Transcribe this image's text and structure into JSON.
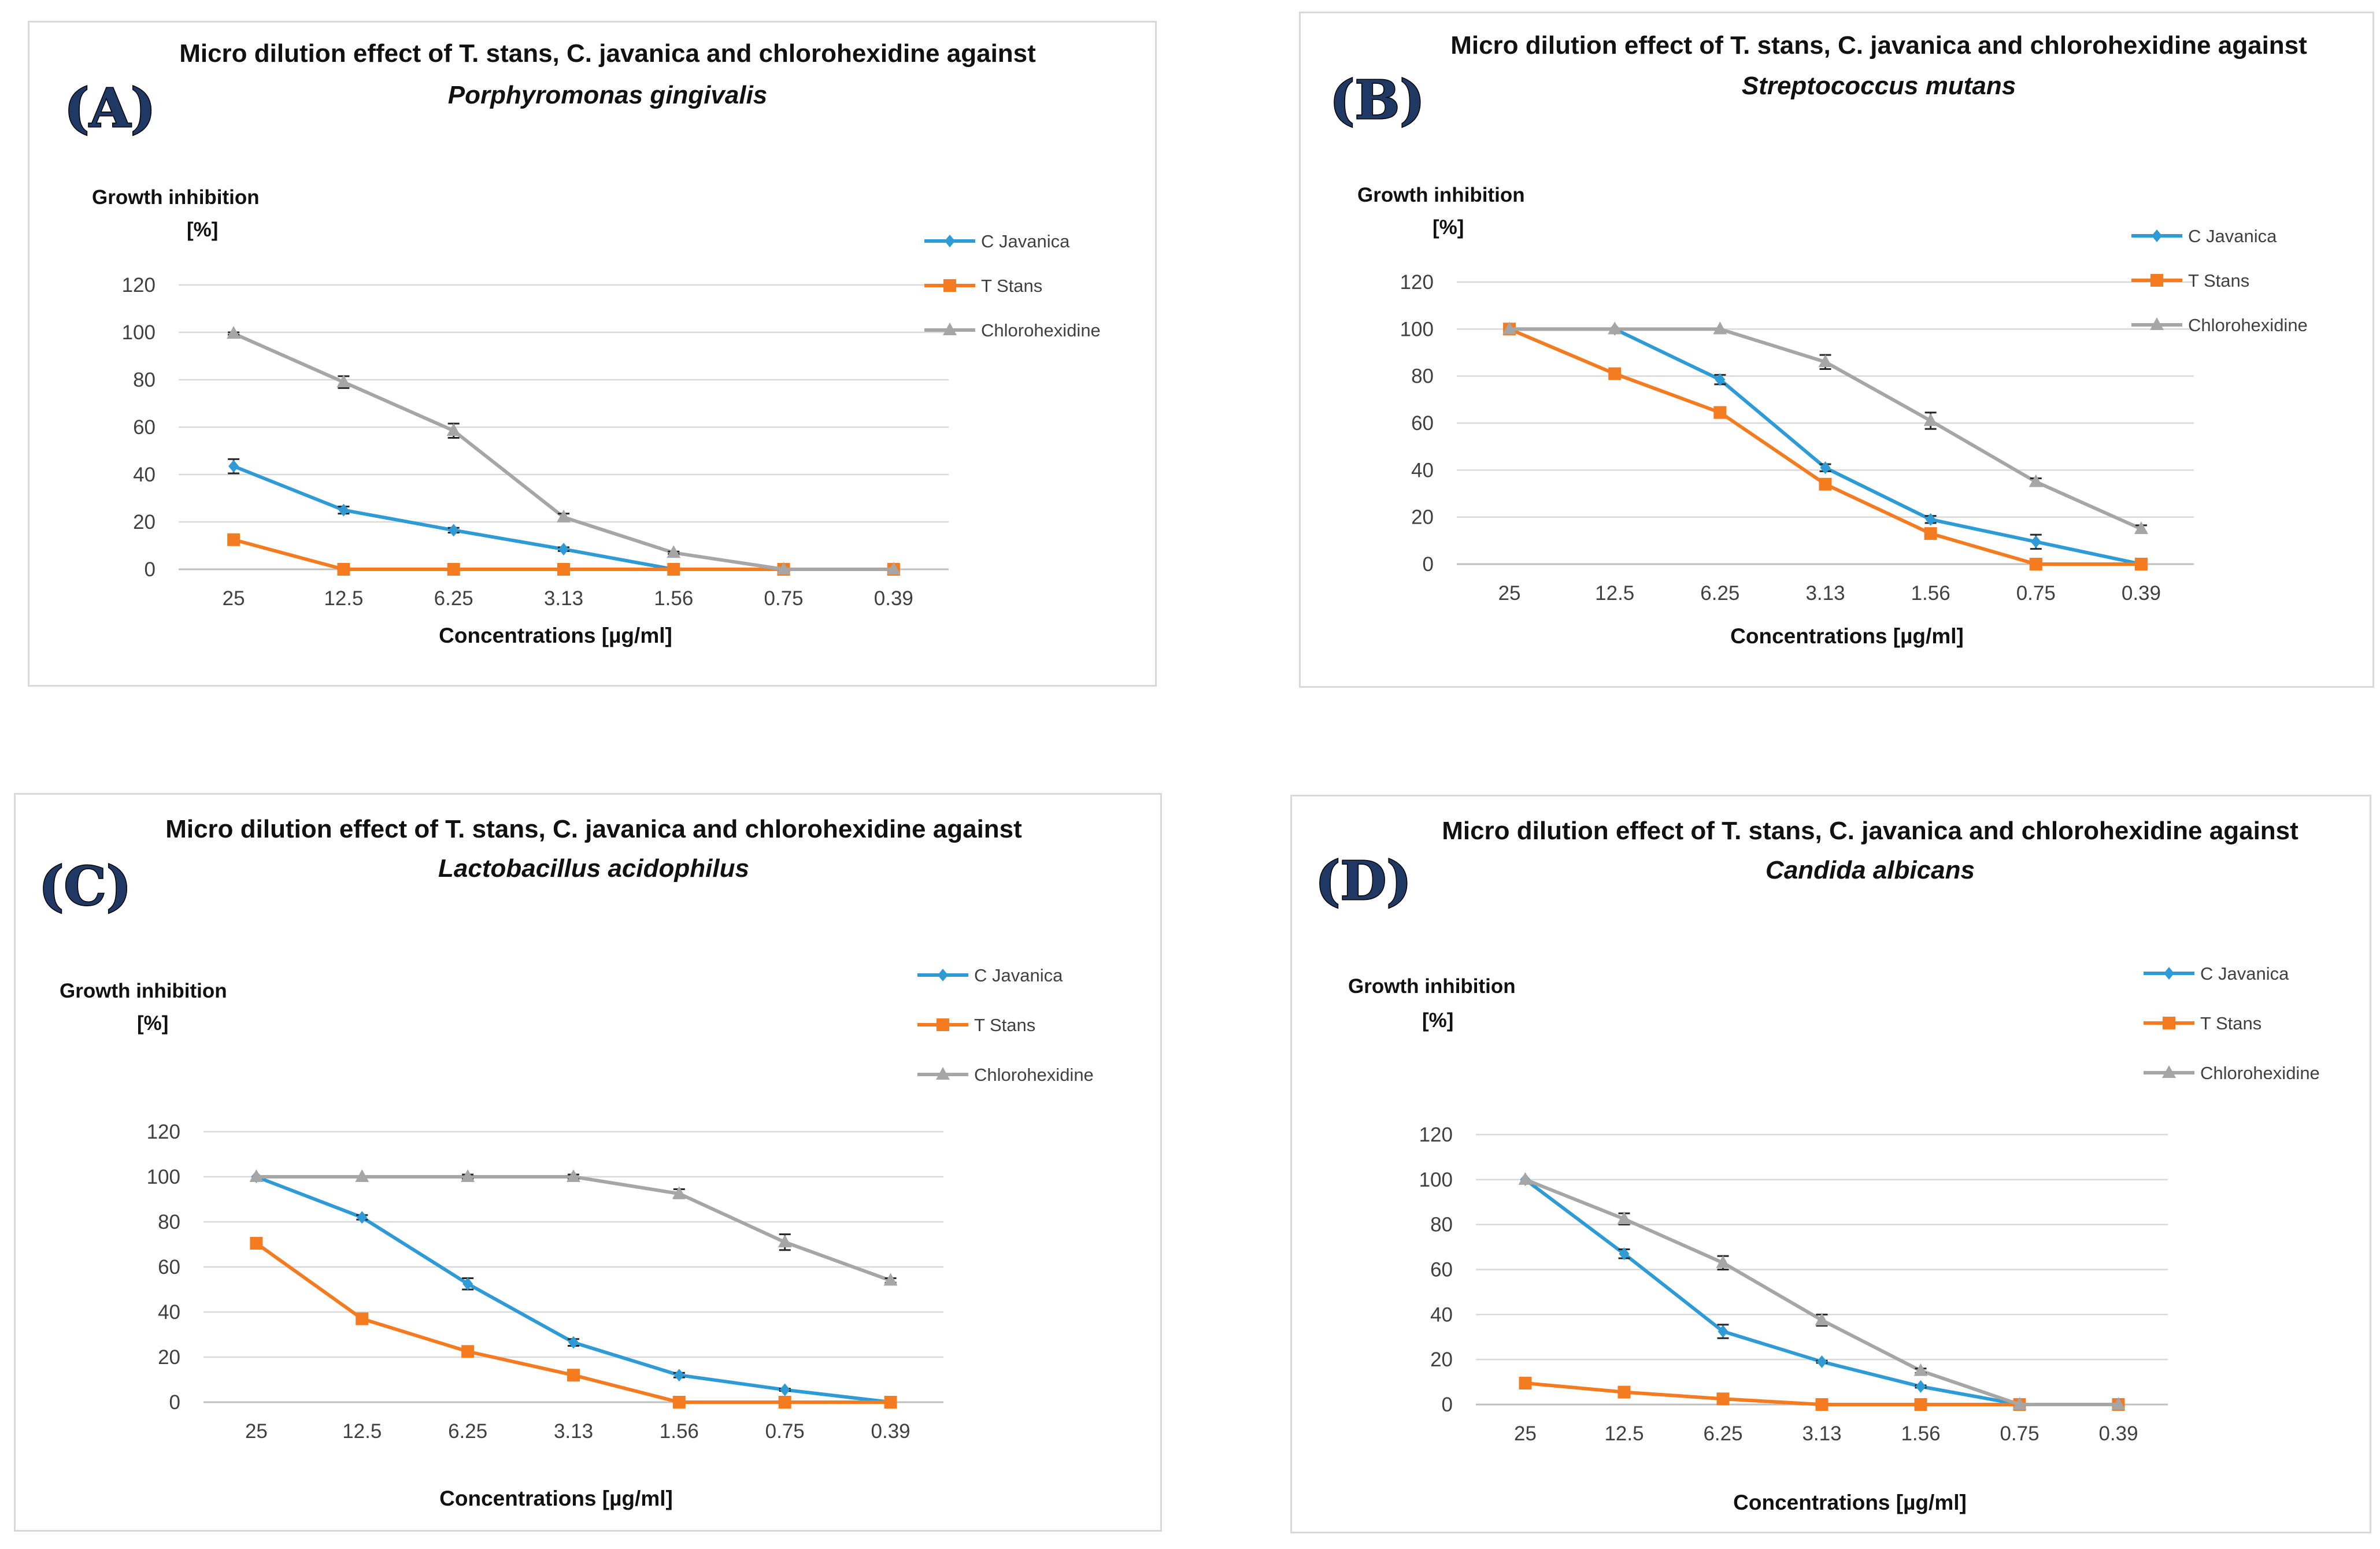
{
  "colors": {
    "c_javanica": "#2e9bd6",
    "t_stans": "#f47b20",
    "chlorohexidine": "#a6a6a6"
  },
  "chart_data": [
    {
      "type": "line",
      "panel_label": "(A)",
      "title": "Micro dilution effect of T. stans, C. javanica and chlorohexidine against",
      "subtitle": "Porphyromonas gingivalis",
      "ylabel": "Growth inhibition",
      "ylabel_unit": "[%]",
      "xlabel": "Concentrations [µg/ml]",
      "categories": [
        "25",
        "12.5",
        "6.25",
        "3.13",
        "1.56",
        "0.75",
        "0.39"
      ],
      "ylim": [
        0,
        120
      ],
      "yticks": [
        0,
        20,
        40,
        60,
        80,
        100,
        120
      ],
      "grid": true,
      "legend_position": "right",
      "series": [
        {
          "name": "C Javanica",
          "key": "c_javanica",
          "marker": "diamond",
          "values": [
            43.5,
            25,
            16.5,
            8.5,
            0,
            0,
            0
          ],
          "errors": [
            3,
            1.5,
            1,
            0.8,
            0,
            0,
            0
          ]
        },
        {
          "name": "T Stans",
          "key": "t_stans",
          "marker": "square",
          "values": [
            12.5,
            0,
            0,
            0,
            0,
            0,
            0
          ],
          "errors": [
            0.5,
            0,
            0,
            0,
            0,
            0,
            0
          ]
        },
        {
          "name": "Chlorohexidine",
          "key": "chlorohexidine",
          "marker": "triangle",
          "values": [
            99.5,
            79,
            58.5,
            22,
            7,
            0,
            0
          ],
          "errors": [
            0.5,
            2.5,
            3,
            1.5,
            0.5,
            0,
            0
          ]
        }
      ]
    },
    {
      "type": "line",
      "panel_label": "(B)",
      "title": "Micro dilution effect of T. stans, C. javanica and chlorohexidine against",
      "subtitle": "Streptococcus mutans",
      "ylabel": "Growth inhibition",
      "ylabel_unit": "[%]",
      "xlabel": "Concentrations [µg/ml]",
      "categories": [
        "25",
        "12.5",
        "6.25",
        "3.13",
        "1.56",
        "0.75",
        "0.39"
      ],
      "ylim": [
        0,
        120
      ],
      "yticks": [
        0,
        20,
        40,
        60,
        80,
        100,
        120
      ],
      "grid": true,
      "legend_position": "right",
      "series": [
        {
          "name": "C Javanica",
          "key": "c_javanica",
          "marker": "diamond",
          "values": [
            100,
            100,
            78.5,
            41,
            19,
            9.5,
            0
          ],
          "errors": [
            0,
            0,
            2,
            1.5,
            1.5,
            3,
            0
          ]
        },
        {
          "name": "T Stans",
          "key": "t_stans",
          "marker": "square",
          "values": [
            100,
            81,
            64.5,
            34,
            13,
            0,
            0
          ],
          "errors": [
            0,
            0.5,
            0.5,
            0.5,
            0.5,
            0,
            0
          ]
        },
        {
          "name": "Chlorohexidine",
          "key": "chlorohexidine",
          "marker": "triangle",
          "values": [
            100,
            100,
            100,
            86,
            61,
            35,
            15
          ],
          "errors": [
            0,
            0,
            0,
            3,
            3.5,
            1.5,
            1.5
          ]
        }
      ]
    },
    {
      "type": "line",
      "panel_label": "(C)",
      "title": "Micro dilution effect of T. stans, C. javanica and chlorohexidine against",
      "subtitle": "Lactobacillus acidophilus",
      "ylabel": "Growth inhibition",
      "ylabel_unit": "[%]",
      "xlabel": "Concentrations [µg/ml]",
      "categories": [
        "25",
        "12.5",
        "6.25",
        "3.13",
        "1.56",
        "0.75",
        "0.39"
      ],
      "ylim": [
        0,
        120
      ],
      "yticks": [
        0,
        20,
        40,
        60,
        80,
        100,
        120
      ],
      "grid": true,
      "legend_position": "right",
      "series": [
        {
          "name": "C Javanica",
          "key": "c_javanica",
          "marker": "diamond",
          "values": [
            100,
            82,
            52.5,
            26.5,
            12,
            5.5,
            0
          ],
          "errors": [
            0,
            1,
            2.5,
            1.5,
            1,
            0.5,
            0
          ]
        },
        {
          "name": "T Stans",
          "key": "t_stans",
          "marker": "square",
          "values": [
            70.5,
            37,
            22.5,
            12,
            0,
            0,
            0
          ],
          "errors": [
            0.5,
            0.5,
            0.5,
            2,
            0,
            0,
            0
          ]
        },
        {
          "name": "Chlorohexidine",
          "key": "chlorohexidine",
          "marker": "triangle",
          "values": [
            100,
            100,
            100,
            100,
            92.5,
            71,
            54
          ],
          "errors": [
            0,
            0,
            1,
            1,
            2,
            3.5,
            1
          ]
        }
      ]
    },
    {
      "type": "line",
      "panel_label": "(D)",
      "title": "Micro dilution effect of T. stans, C. javanica and chlorohexidine against",
      "subtitle": "Candida albicans",
      "ylabel": "Growth inhibition",
      "ylabel_unit": "[%]",
      "xlabel": "Concentrations [µg/ml]",
      "categories": [
        "25",
        "12.5",
        "6.25",
        "3.13",
        "1.56",
        "0.75",
        "0.39"
      ],
      "ylim": [
        0,
        120
      ],
      "yticks": [
        0,
        20,
        40,
        60,
        80,
        100,
        120
      ],
      "grid": true,
      "legend_position": "right",
      "series": [
        {
          "name": "C Javanica",
          "key": "c_javanica",
          "marker": "diamond",
          "values": [
            100,
            67,
            32.5,
            19,
            8,
            0,
            0
          ],
          "errors": [
            0,
            2,
            3,
            0.5,
            0.5,
            0,
            0
          ]
        },
        {
          "name": "T Stans",
          "key": "t_stans",
          "marker": "square",
          "values": [
            9.5,
            5.5,
            2.5,
            0,
            0,
            0,
            0
          ],
          "errors": [
            0.3,
            0.3,
            0.3,
            0,
            0,
            0,
            0
          ]
        },
        {
          "name": "Chlorohexidine",
          "key": "chlorohexidine",
          "marker": "triangle",
          "values": [
            100,
            82.5,
            63,
            37.5,
            15,
            0,
            0
          ],
          "errors": [
            0,
            2.5,
            3,
            2.5,
            1,
            0,
            0
          ]
        }
      ]
    }
  ]
}
